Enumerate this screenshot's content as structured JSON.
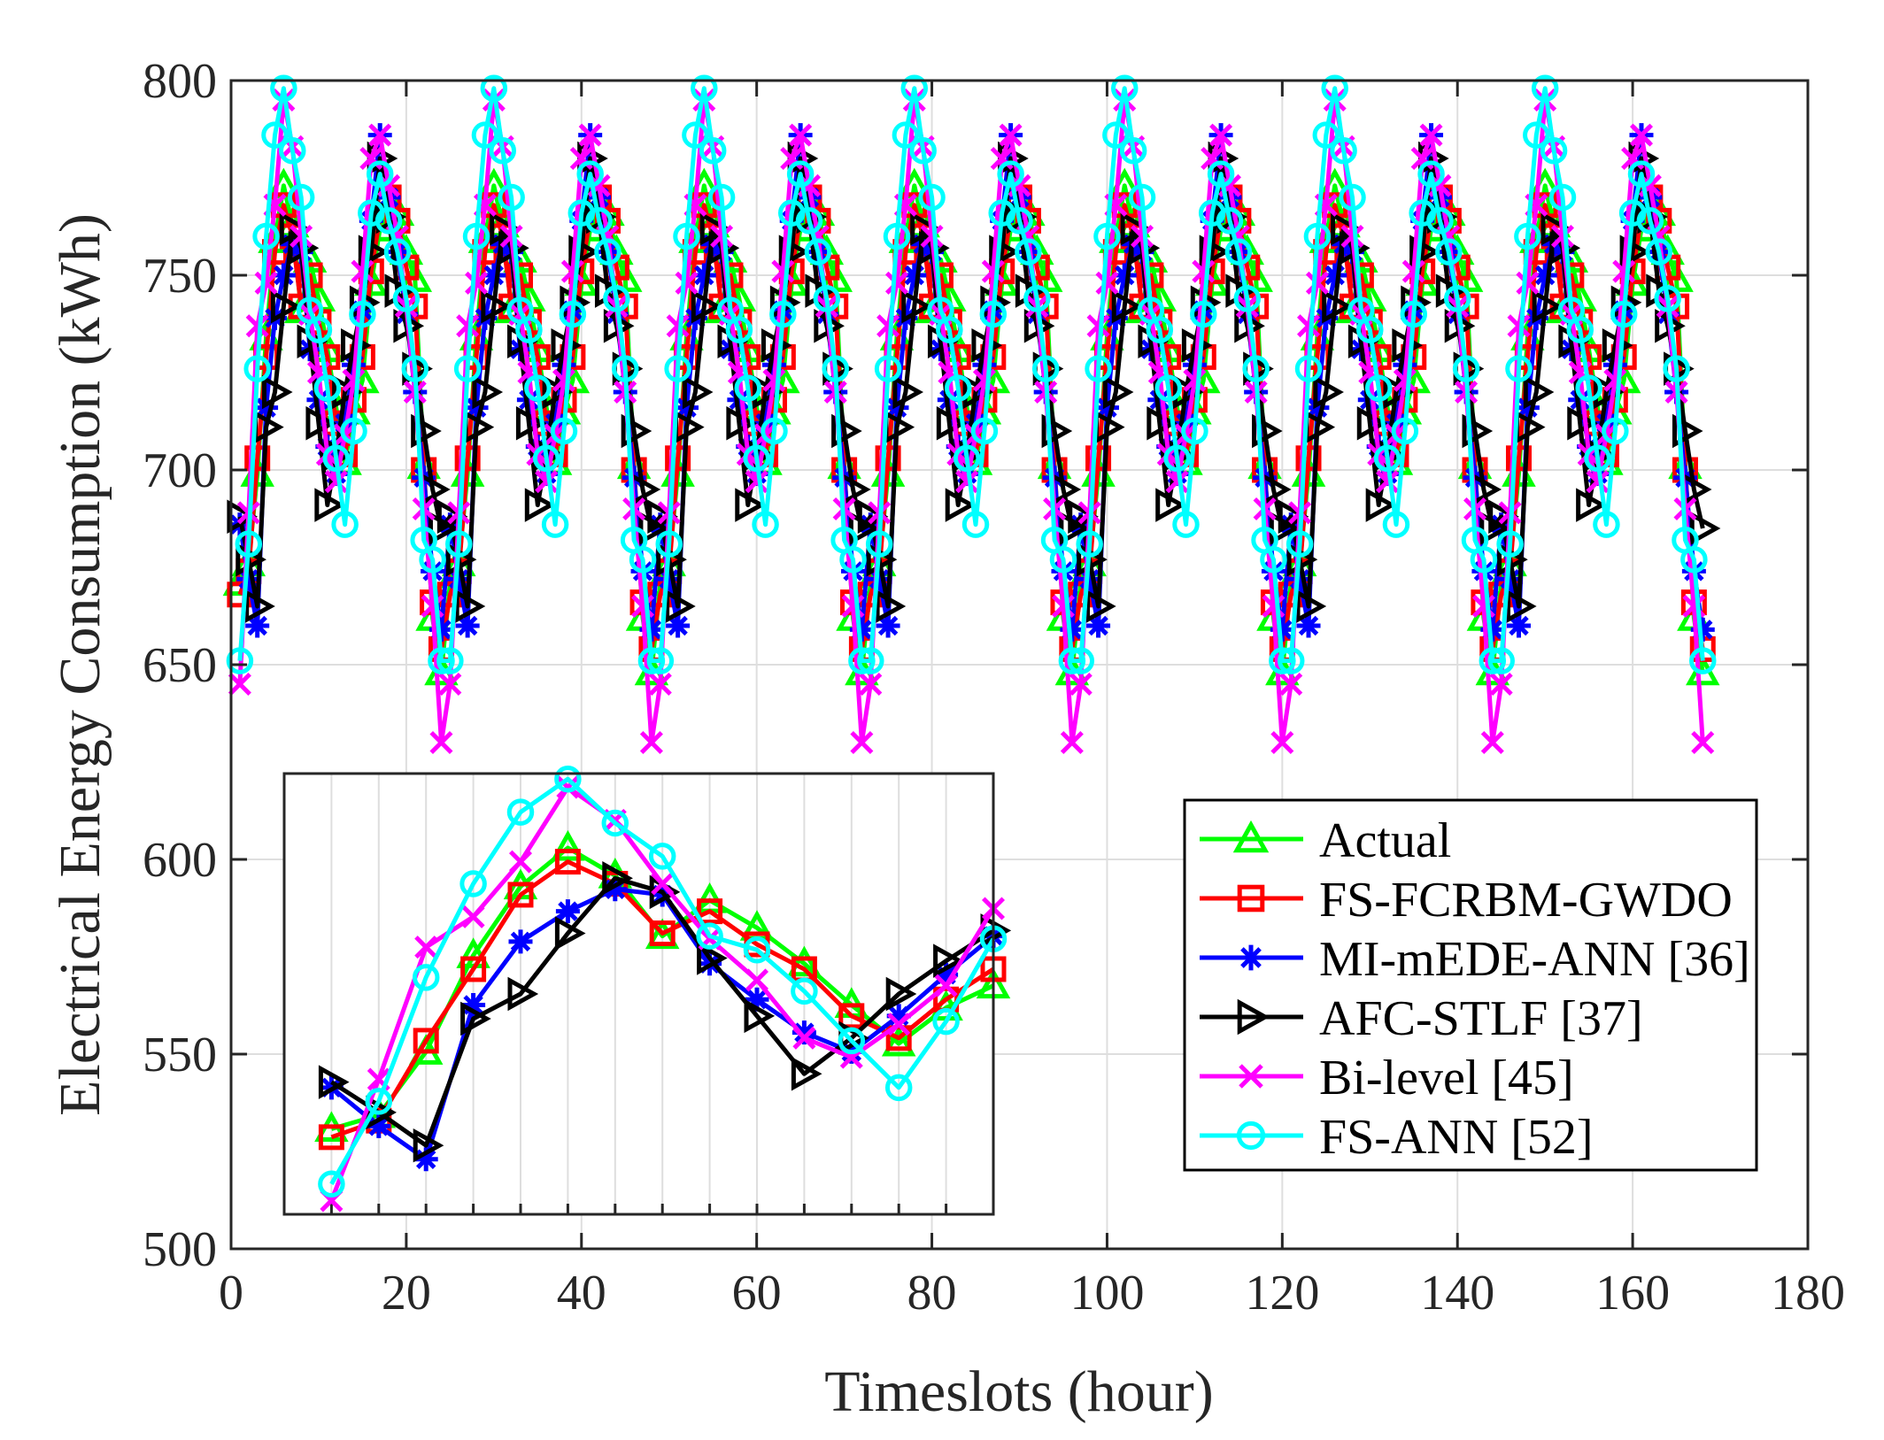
{
  "chart_data": {
    "type": "line",
    "xlabel": "Timeslots (hour)",
    "ylabel": "Electrical Energy Consumption (kWh)",
    "xlim": [
      0,
      180
    ],
    "ylim": [
      500,
      800
    ],
    "xticks": [
      0,
      20,
      40,
      60,
      80,
      100,
      120,
      140,
      160,
      180
    ],
    "yticks": [
      500,
      550,
      600,
      650,
      700,
      750,
      800
    ],
    "grid": true,
    "legend_position": "lower-right",
    "x": [
      1,
      2,
      3,
      4,
      5,
      6,
      7,
      8,
      9,
      10,
      11,
      12,
      13,
      14,
      15,
      16,
      17,
      18,
      19,
      20,
      21,
      22,
      23,
      24,
      25,
      26,
      27,
      28,
      29,
      30,
      31,
      32,
      33,
      34,
      35,
      36,
      37,
      38,
      39,
      40,
      41,
      42,
      43,
      44,
      45,
      46,
      47,
      48,
      49,
      50,
      51,
      52,
      53,
      54,
      55,
      56,
      57,
      58,
      59,
      60,
      61,
      62,
      63,
      64,
      65,
      66,
      67,
      68,
      69,
      70,
      71,
      72,
      73,
      74,
      75,
      76,
      77,
      78,
      79,
      80,
      81,
      82,
      83,
      84,
      85,
      86,
      87,
      88,
      89,
      90,
      91,
      92,
      93,
      94,
      95,
      96,
      97,
      98,
      99,
      100,
      101,
      102,
      103,
      104,
      105,
      106,
      107,
      108,
      109,
      110,
      111,
      112,
      113,
      114,
      115,
      116,
      117,
      118,
      119,
      120,
      121,
      122,
      123,
      124,
      125,
      126,
      127,
      128,
      129,
      130,
      131,
      132,
      133,
      134,
      135,
      136,
      137,
      138,
      139,
      140,
      141,
      142,
      143,
      144,
      145,
      146,
      147,
      148,
      149,
      150,
      151,
      152,
      153,
      154,
      155,
      156,
      157,
      158,
      159,
      160,
      161,
      162,
      163,
      164,
      165,
      166,
      167,
      168
    ],
    "series": [
      {
        "name": "Actual",
        "color": "#00ff00",
        "marker": "triangle-up",
        "values": [
          671,
          676,
          699,
          734,
          759,
          773,
          763,
          741,
          754,
          744,
          731,
          716,
          702,
          715,
          723,
          748,
          762,
          767,
          766,
          756,
          749,
          701,
          662,
          648,
          671,
          676,
          699,
          734,
          759,
          773,
          763,
          741,
          754,
          744,
          731,
          716,
          702,
          715,
          723,
          748,
          762,
          767,
          766,
          756,
          749,
          701,
          662,
          648,
          671,
          676,
          699,
          734,
          759,
          773,
          763,
          741,
          754,
          744,
          731,
          716,
          702,
          715,
          723,
          748,
          762,
          767,
          766,
          756,
          749,
          701,
          662,
          648,
          671,
          676,
          699,
          734,
          759,
          773,
          763,
          741,
          754,
          744,
          731,
          716,
          702,
          715,
          723,
          748,
          762,
          767,
          766,
          756,
          749,
          701,
          662,
          648,
          671,
          676,
          699,
          734,
          759,
          773,
          763,
          741,
          754,
          744,
          731,
          716,
          702,
          715,
          723,
          748,
          762,
          767,
          766,
          756,
          749,
          701,
          662,
          648,
          671,
          676,
          699,
          734,
          759,
          773,
          763,
          741,
          754,
          744,
          731,
          716,
          702,
          715,
          723,
          748,
          762,
          767,
          766,
          756,
          749,
          701,
          662,
          648,
          671,
          676,
          699,
          734,
          759,
          773,
          763,
          741,
          754,
          744,
          731,
          716,
          702,
          715,
          723,
          748,
          762,
          767,
          766,
          756,
          749,
          701,
          662,
          648
        ]
      },
      {
        "name": "FS-FCRBM-GWDO",
        "color": "#ff0000",
        "marker": "square",
        "values": [
          668,
          674,
          703,
          729,
          756,
          768,
          760,
          742,
          750,
          738,
          729,
          712,
          704,
          718,
          729,
          751,
          765,
          770,
          764,
          752,
          742,
          700,
          666,
          654,
          668,
          674,
          703,
          729,
          756,
          768,
          760,
          742,
          750,
          738,
          729,
          712,
          704,
          718,
          729,
          751,
          765,
          770,
          764,
          752,
          742,
          700,
          666,
          654,
          668,
          674,
          703,
          729,
          756,
          768,
          760,
          742,
          750,
          738,
          729,
          712,
          704,
          718,
          729,
          751,
          765,
          770,
          764,
          752,
          742,
          700,
          666,
          654,
          668,
          674,
          703,
          729,
          756,
          768,
          760,
          742,
          750,
          738,
          729,
          712,
          704,
          718,
          729,
          751,
          765,
          770,
          764,
          752,
          742,
          700,
          666,
          654,
          668,
          674,
          703,
          729,
          756,
          768,
          760,
          742,
          750,
          738,
          729,
          712,
          704,
          718,
          729,
          751,
          765,
          770,
          764,
          752,
          742,
          700,
          666,
          654,
          668,
          674,
          703,
          729,
          756,
          768,
          760,
          742,
          750,
          738,
          729,
          712,
          704,
          718,
          729,
          751,
          765,
          770,
          764,
          752,
          742,
          700,
          666,
          654,
          668,
          674,
          703,
          729,
          756,
          768,
          760,
          742,
          750,
          738,
          729,
          712,
          704,
          718,
          729,
          751,
          765,
          770,
          764,
          752,
          742,
          700,
          666,
          654
        ]
      },
      {
        "name": "MI-mEDE-ANN [36]",
        "color": "#0000ff",
        "marker": "asterisk",
        "values": [
          686,
          672,
          660,
          716,
          739,
          750,
          758,
          756,
          731,
          718,
          706,
          699,
          712,
          727,
          741,
          764,
          786,
          770,
          756,
          740,
          720,
          698,
          674,
          659,
          686,
          672,
          660,
          716,
          739,
          750,
          758,
          756,
          731,
          718,
          706,
          699,
          712,
          727,
          741,
          764,
          786,
          770,
          756,
          740,
          720,
          698,
          674,
          659,
          686,
          672,
          660,
          716,
          739,
          750,
          758,
          756,
          731,
          718,
          706,
          699,
          712,
          727,
          741,
          764,
          786,
          770,
          756,
          740,
          720,
          698,
          674,
          659,
          686,
          672,
          660,
          716,
          739,
          750,
          758,
          756,
          731,
          718,
          706,
          699,
          712,
          727,
          741,
          764,
          786,
          770,
          756,
          740,
          720,
          698,
          674,
          659,
          686,
          672,
          660,
          716,
          739,
          750,
          758,
          756,
          731,
          718,
          706,
          699,
          712,
          727,
          741,
          764,
          786,
          770,
          756,
          740,
          720,
          698,
          674,
          659,
          686,
          672,
          660,
          716,
          739,
          750,
          758,
          756,
          731,
          718,
          706,
          699,
          712,
          727,
          741,
          764,
          786,
          770,
          756,
          740,
          720,
          698,
          674,
          659,
          686,
          672,
          660,
          716,
          739,
          750,
          758,
          756,
          731,
          718,
          706,
          699,
          712,
          727,
          741,
          764,
          786,
          770,
          756,
          740,
          720,
          698,
          674,
          659
        ]
      },
      {
        "name": "AFC-STLF [37]",
        "color": "#000000",
        "marker": "triangle-right",
        "values": [
          688,
          677,
          665,
          711,
          720,
          742,
          762,
          757,
          733,
          712,
          691,
          704,
          720,
          732,
          743,
          756,
          780,
          765,
          746,
          737,
          726,
          710,
          695,
          685,
          688,
          677,
          665,
          711,
          720,
          742,
          762,
          757,
          733,
          712,
          691,
          704,
          720,
          732,
          743,
          756,
          780,
          765,
          746,
          737,
          726,
          710,
          695,
          685,
          688,
          677,
          665,
          711,
          720,
          742,
          762,
          757,
          733,
          712,
          691,
          704,
          720,
          732,
          743,
          756,
          780,
          765,
          746,
          737,
          726,
          710,
          695,
          685,
          688,
          677,
          665,
          711,
          720,
          742,
          762,
          757,
          733,
          712,
          691,
          704,
          720,
          732,
          743,
          756,
          780,
          765,
          746,
          737,
          726,
          710,
          695,
          685,
          688,
          677,
          665,
          711,
          720,
          742,
          762,
          757,
          733,
          712,
          691,
          704,
          720,
          732,
          743,
          756,
          780,
          765,
          746,
          737,
          726,
          710,
          695,
          685,
          688,
          677,
          665,
          711,
          720,
          742,
          762,
          757,
          733,
          712,
          691,
          704,
          720,
          732,
          743,
          756,
          780,
          765,
          746,
          737,
          726,
          710,
          695,
          685,
          688,
          677,
          665,
          711,
          720,
          742,
          762,
          757,
          733,
          712,
          691,
          704,
          720,
          732,
          743,
          756,
          780,
          765,
          746,
          737,
          726,
          710,
          695,
          685
        ]
      },
      {
        "name": "Bi-level [45]",
        "color": "#ff00ff",
        "marker": "x",
        "values": [
          645,
          689,
          737,
          748,
          768,
          795,
          783,
          760,
          740,
          725,
          704,
          697,
          709,
          723,
          751,
          780,
          786,
          773,
          760,
          742,
          720,
          690,
          665,
          630,
          645,
          689,
          737,
          748,
          768,
          795,
          783,
          760,
          740,
          725,
          704,
          697,
          709,
          723,
          751,
          780,
          786,
          773,
          760,
          742,
          720,
          690,
          665,
          630,
          645,
          689,
          737,
          748,
          768,
          795,
          783,
          760,
          740,
          725,
          704,
          697,
          709,
          723,
          751,
          780,
          786,
          773,
          760,
          742,
          720,
          690,
          665,
          630,
          645,
          689,
          737,
          748,
          768,
          795,
          783,
          760,
          740,
          725,
          704,
          697,
          709,
          723,
          751,
          780,
          786,
          773,
          760,
          742,
          720,
          690,
          665,
          630,
          645,
          689,
          737,
          748,
          768,
          795,
          783,
          760,
          740,
          725,
          704,
          697,
          709,
          723,
          751,
          780,
          786,
          773,
          760,
          742,
          720,
          690,
          665,
          630,
          645,
          689,
          737,
          748,
          768,
          795,
          783,
          760,
          740,
          725,
          704,
          697,
          709,
          723,
          751,
          780,
          786,
          773,
          760,
          742,
          720,
          690,
          665,
          630,
          645,
          689,
          737,
          748,
          768,
          795,
          783,
          760,
          740,
          725,
          704,
          697,
          709,
          723,
          751,
          780,
          786,
          773,
          760,
          742,
          720,
          690,
          665,
          630
        ]
      },
      {
        "name": "FS-ANN [52]",
        "color": "#00ffff",
        "marker": "circle",
        "values": [
          651,
          681,
          726,
          760,
          786,
          798,
          782,
          770,
          741,
          736,
          721,
          703,
          686,
          710,
          740,
          766,
          776,
          764,
          756,
          744,
          726,
          682,
          677,
          651,
          651,
          681,
          726,
          760,
          786,
          798,
          782,
          770,
          741,
          736,
          721,
          703,
          686,
          710,
          740,
          766,
          776,
          764,
          756,
          744,
          726,
          682,
          677,
          651,
          651,
          681,
          726,
          760,
          786,
          798,
          782,
          770,
          741,
          736,
          721,
          703,
          686,
          710,
          740,
          766,
          776,
          764,
          756,
          744,
          726,
          682,
          677,
          651,
          651,
          681,
          726,
          760,
          786,
          798,
          782,
          770,
          741,
          736,
          721,
          703,
          686,
          710,
          740,
          766,
          776,
          764,
          756,
          744,
          726,
          682,
          677,
          651,
          651,
          681,
          726,
          760,
          786,
          798,
          782,
          770,
          741,
          736,
          721,
          703,
          686,
          710,
          740,
          766,
          776,
          764,
          756,
          744,
          726,
          682,
          677,
          651,
          651,
          681,
          726,
          760,
          786,
          798,
          782,
          770,
          741,
          736,
          721,
          703,
          686,
          710,
          740,
          766,
          776,
          764,
          756,
          744,
          726,
          682,
          677,
          651,
          651,
          681,
          726,
          760,
          786,
          798,
          782,
          770,
          741,
          736,
          721,
          703,
          686,
          710,
          740,
          766,
          776,
          764,
          756,
          744,
          726,
          682,
          677,
          651
        ]
      }
    ],
    "inset": {
      "type": "line",
      "description": "zoomed view of the first 15 hours",
      "xlim": [
        0,
        15
      ],
      "ylim": [
        640,
        800
      ],
      "x": [
        1,
        2,
        3,
        4,
        5,
        6,
        7,
        8,
        9,
        10,
        11,
        12,
        13,
        14,
        15
      ]
    }
  }
}
